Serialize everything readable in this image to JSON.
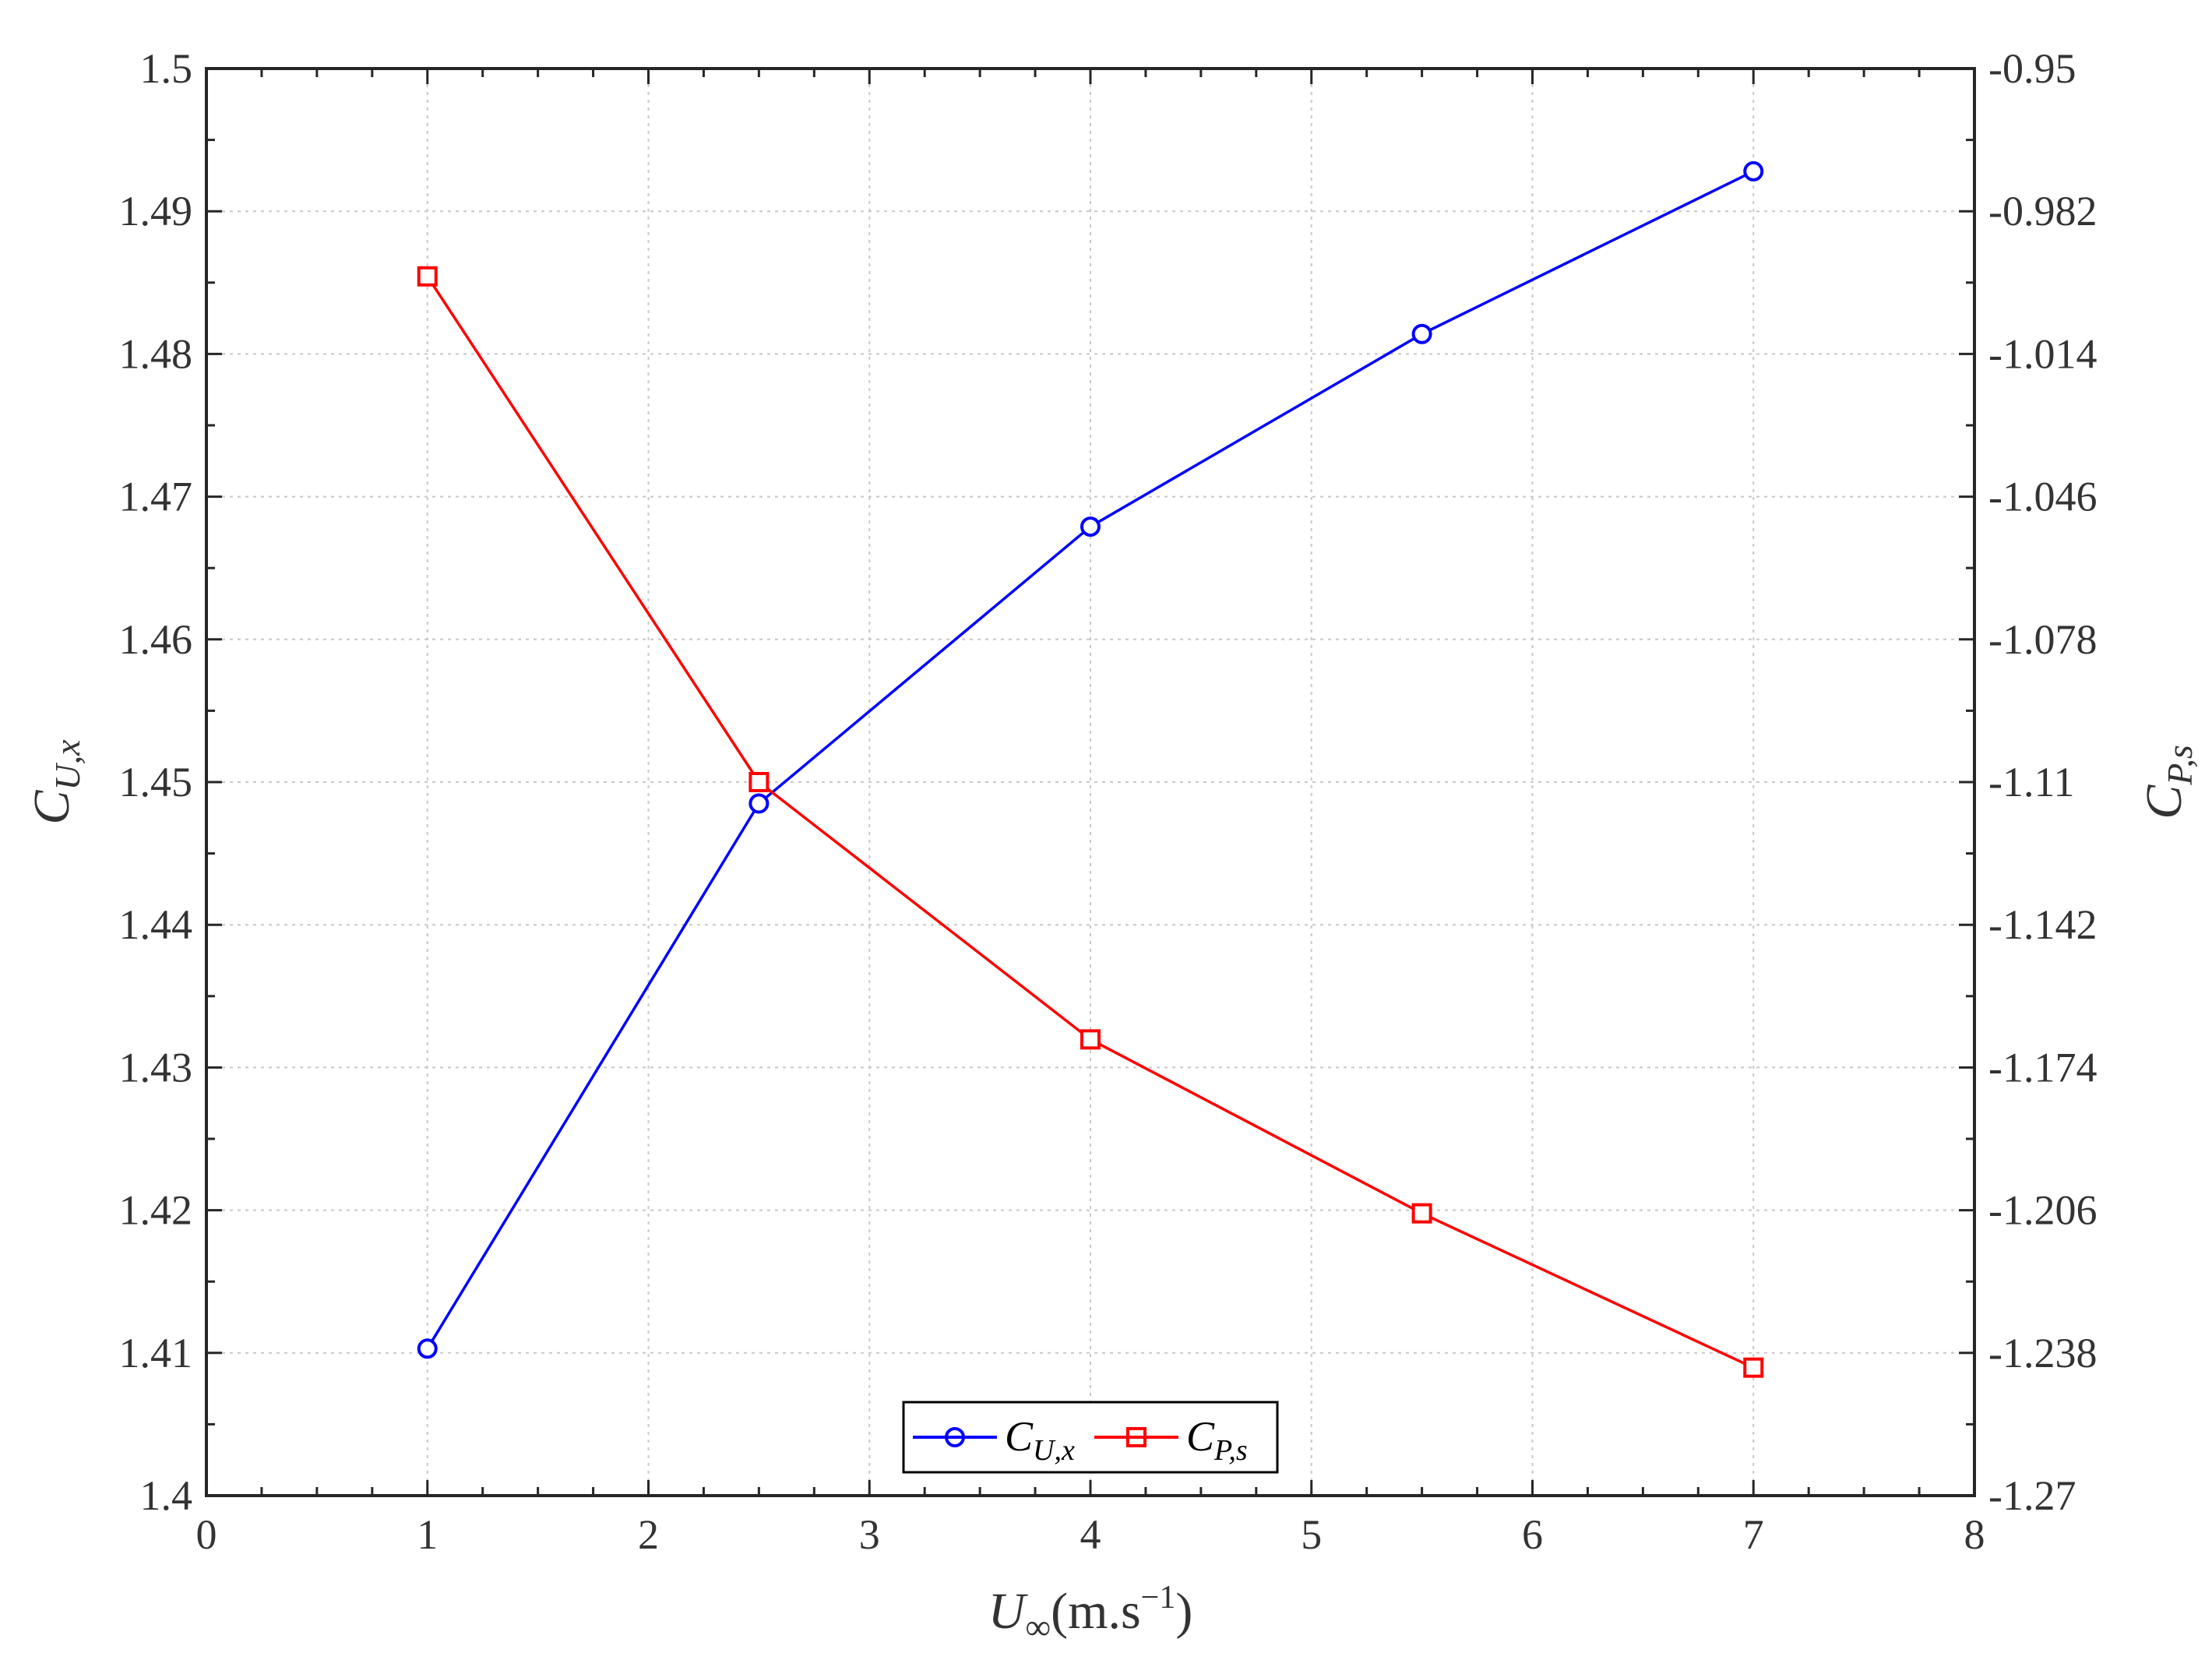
{
  "chart_data": {
    "type": "line",
    "title": "",
    "xlabel": {
      "base": "U",
      "sub": "∞",
      "rest": "(m.s",
      "sup": "−1",
      "close": ")"
    },
    "ylabel_left": {
      "base": "C",
      "sub": "U,x"
    },
    "ylabel_right": {
      "base": "C",
      "sub": "P,s"
    },
    "xlim": [
      0,
      8
    ],
    "ylim_left": [
      1.4,
      1.5
    ],
    "ylim_right": [
      -1.27,
      -0.95
    ],
    "x_ticks": [
      "0",
      "1",
      "2",
      "3",
      "4",
      "5",
      "6",
      "7",
      "8"
    ],
    "y_ticks_left": [
      "1.4",
      "1.41",
      "1.42",
      "1.43",
      "1.44",
      "1.45",
      "1.46",
      "1.47",
      "1.48",
      "1.49",
      "1.5"
    ],
    "y_ticks_right": [
      "-1.27",
      "-1.238",
      "-1.206",
      "-1.174",
      "-1.142",
      "-1.11",
      "-1.078",
      "-1.046",
      "-1.014",
      "-0.982",
      "-0.95"
    ],
    "grid": true,
    "legend_position": "bottom-center",
    "series": [
      {
        "name": "CU,x",
        "legend_base": "C",
        "legend_sub": "U,x",
        "axis": "left",
        "color": "#0000ff",
        "marker": "circle",
        "x": [
          1,
          2.5,
          4,
          5.5,
          7
        ],
        "y": [
          1.4103,
          1.4485,
          1.4679,
          1.4814,
          1.4928
        ]
      },
      {
        "name": "CP,s",
        "legend_base": "C",
        "legend_sub": "P,s",
        "axis": "right",
        "color": "#ff0000",
        "marker": "square",
        "x": [
          1,
          2.5,
          4,
          5.5,
          7
        ],
        "y": [
          -0.9966,
          -1.11,
          -1.1677,
          -1.2067,
          -1.2413
        ]
      }
    ]
  }
}
